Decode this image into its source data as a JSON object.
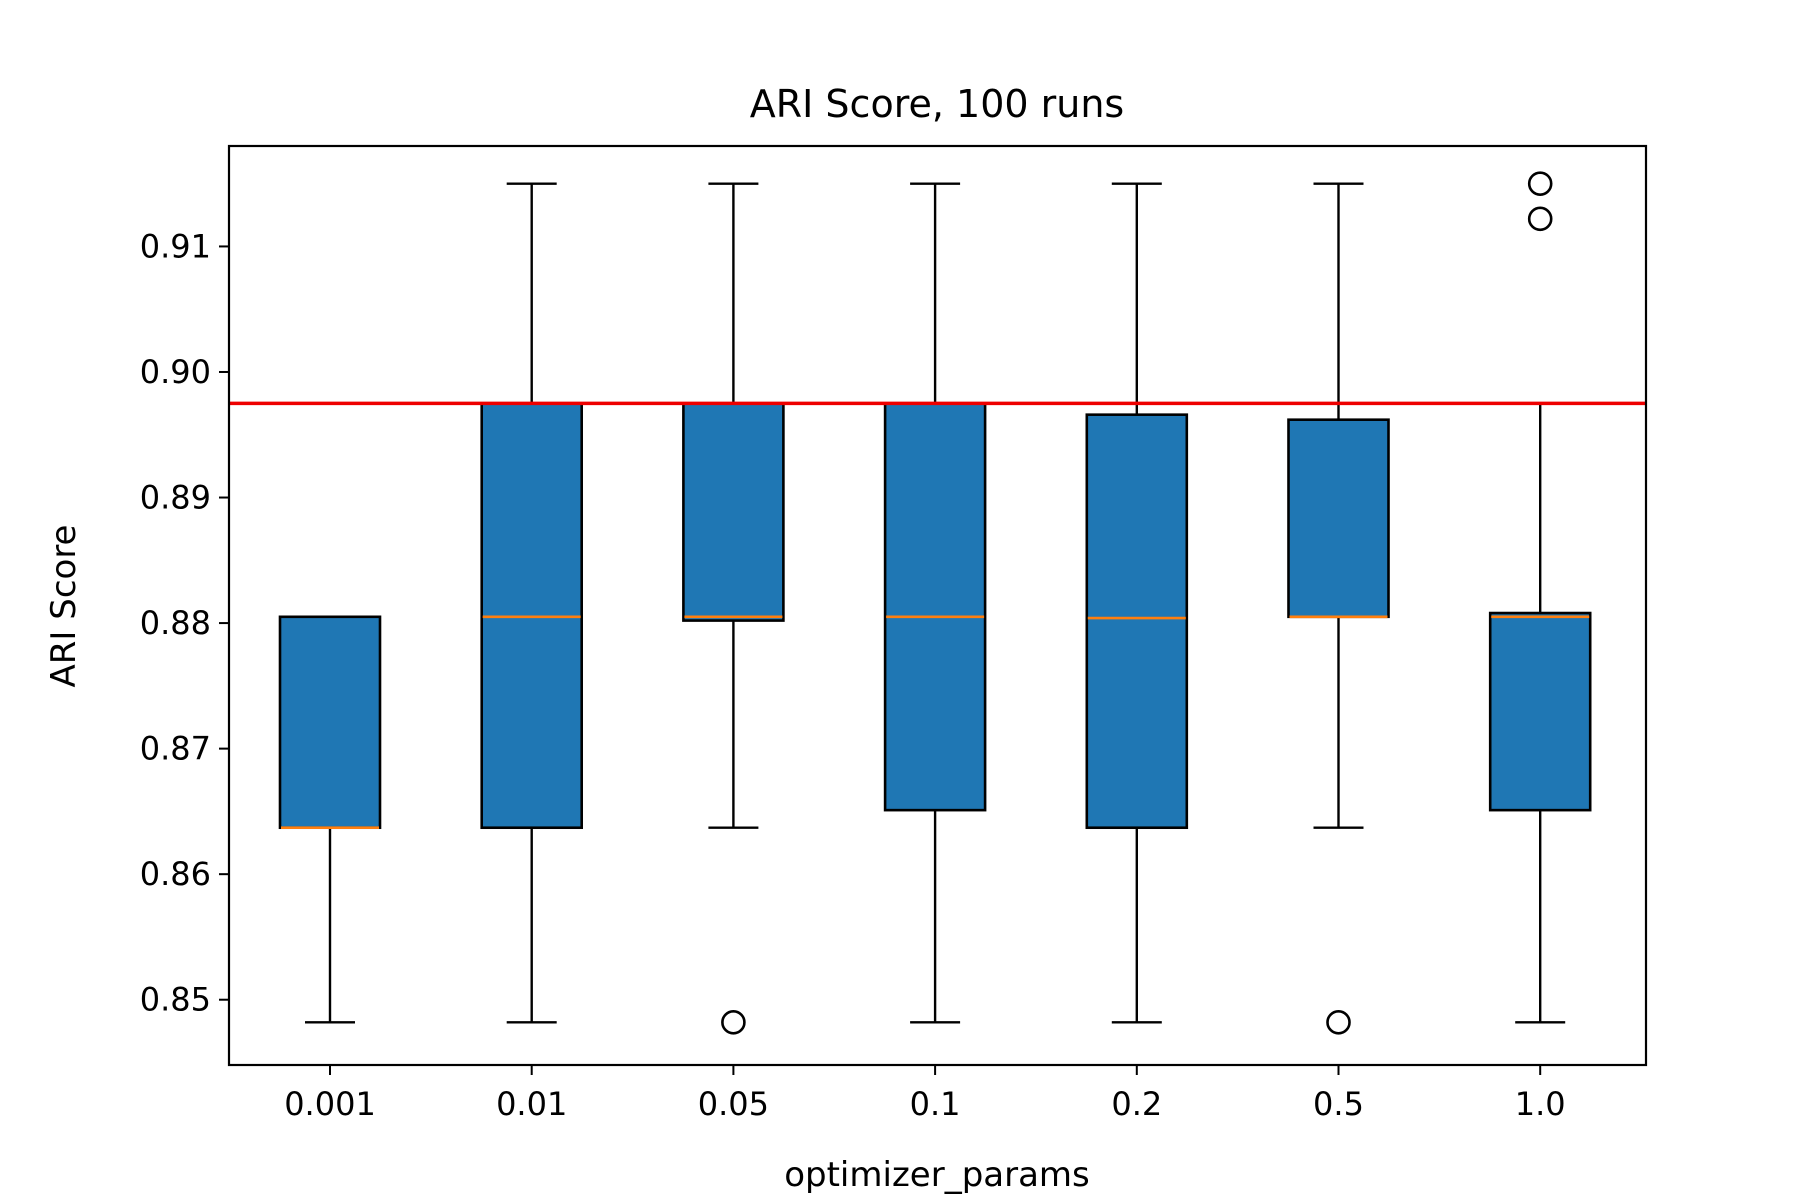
{
  "chart_data": {
    "type": "box",
    "title": "ARI Score, 100 runs",
    "xlabel": "optimizer_params",
    "ylabel": "ARI Score",
    "categories": [
      "0.001",
      "0.01",
      "0.05",
      "0.1",
      "0.2",
      "0.5",
      "1.0"
    ],
    "ylim": [
      0.8448,
      0.918
    ],
    "yticks": [
      0.85,
      0.86,
      0.87,
      0.88,
      0.89,
      0.9,
      0.91
    ],
    "ytick_labels": [
      "0.85",
      "0.86",
      "0.87",
      "0.88",
      "0.89",
      "0.90",
      "0.91"
    ],
    "grid": false,
    "boxes": [
      {
        "category": "0.001",
        "whisker_low": 0.8482,
        "q1": 0.8637,
        "median": 0.8637,
        "q3": 0.8805,
        "whisker_high": 0.8805,
        "outliers": []
      },
      {
        "category": "0.01",
        "whisker_low": 0.8482,
        "q1": 0.8637,
        "median": 0.8805,
        "q3": 0.8975,
        "whisker_high": 0.915,
        "outliers": []
      },
      {
        "category": "0.05",
        "whisker_low": 0.8637,
        "q1": 0.8802,
        "median": 0.8805,
        "q3": 0.8975,
        "whisker_high": 0.915,
        "outliers": [
          0.8482
        ]
      },
      {
        "category": "0.1",
        "whisker_low": 0.8482,
        "q1": 0.8651,
        "median": 0.8805,
        "q3": 0.8975,
        "whisker_high": 0.915,
        "outliers": []
      },
      {
        "category": "0.2",
        "whisker_low": 0.8482,
        "q1": 0.8637,
        "median": 0.8804,
        "q3": 0.8966,
        "whisker_high": 0.915,
        "outliers": []
      },
      {
        "category": "0.5",
        "whisker_low": 0.8637,
        "q1": 0.8805,
        "median": 0.8805,
        "q3": 0.8962,
        "whisker_high": 0.915,
        "outliers": [
          0.8482
        ]
      },
      {
        "category": "1.0",
        "whisker_low": 0.8482,
        "q1": 0.8651,
        "median": 0.8805,
        "q3": 0.8808,
        "whisker_high": 0.8975,
        "outliers": [
          0.9122,
          0.915
        ]
      }
    ],
    "reference_line": {
      "y": 0.8975,
      "color": "#ee0000"
    },
    "colors": {
      "box_fill": "#1f77b4",
      "box_edge": "#000000",
      "median": "#ff7f0e",
      "whisker": "#000000"
    }
  }
}
